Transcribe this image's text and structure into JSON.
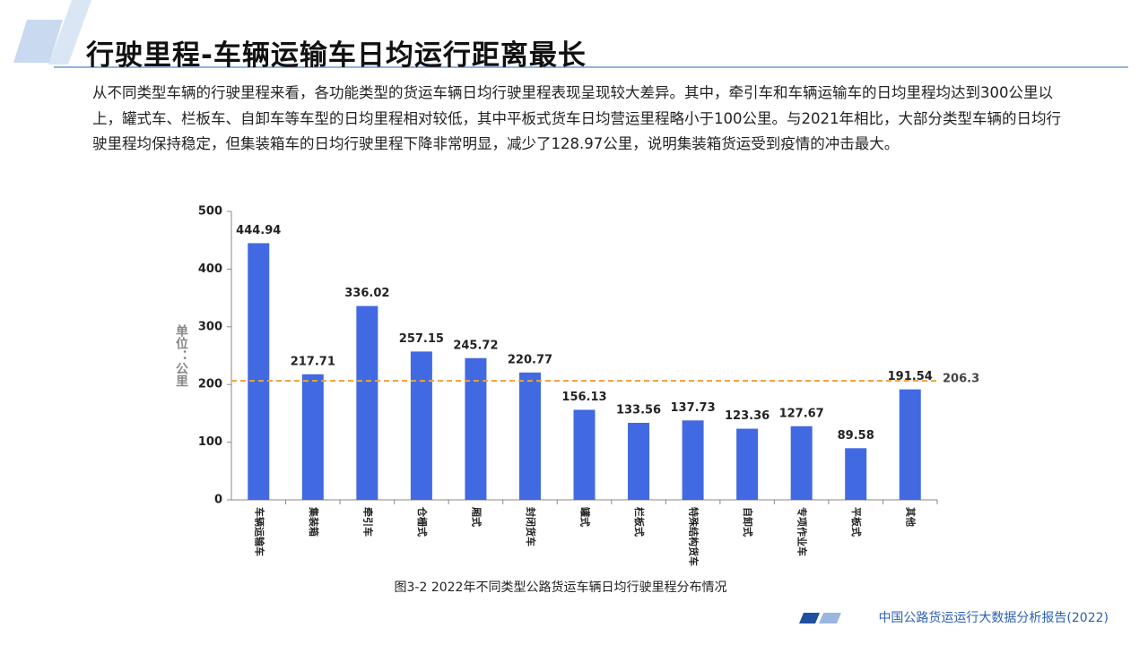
{
  "header": {
    "title": "行驶里程-车辆运输车日均运行距离最长"
  },
  "body": {
    "paragraph": "从不同类型车辆的行驶里程来看，各功能类型的货运车辆日均行驶里程表现呈现较大差异。其中，牵引车和车辆运输车的日均里程均达到300公里以上，罐式车、栏板车、自卸车等车型的日均里程相对较低，其中平板式货车日均营运里程略小于100公里。与2021年相比，大部分类型车辆的日均行驶里程均保持稳定，但集装箱车的日均行驶里程下降非常明显，减少了128.97公里，说明集装箱货运受到疫情的冲击最大。"
  },
  "chart_data": {
    "type": "bar",
    "y_label": "单位：公里",
    "categories": [
      "车辆运输车",
      "集装箱",
      "牵引车",
      "仓栅式",
      "厢式",
      "封闭货车",
      "罐式",
      "栏板式",
      "特殊结构货车",
      "自卸式",
      "专项作业车",
      "平板式",
      "其他"
    ],
    "values": [
      444.94,
      217.71,
      336.02,
      257.15,
      245.72,
      220.77,
      156.13,
      133.56,
      137.73,
      123.36,
      127.67,
      89.58,
      191.54
    ],
    "color": "#4169e1",
    "ylim": [
      0,
      500
    ],
    "yticks": [
      0,
      100,
      200,
      300,
      400,
      500
    ],
    "reference_line": {
      "value": 206.3,
      "color": "#f0a030"
    },
    "caption": "图3-2 2022年不同类型公路货运车辆日均行驶里程分布情况"
  },
  "footer": {
    "text": "中国公路货运运行大数据分析报告(2022)"
  }
}
